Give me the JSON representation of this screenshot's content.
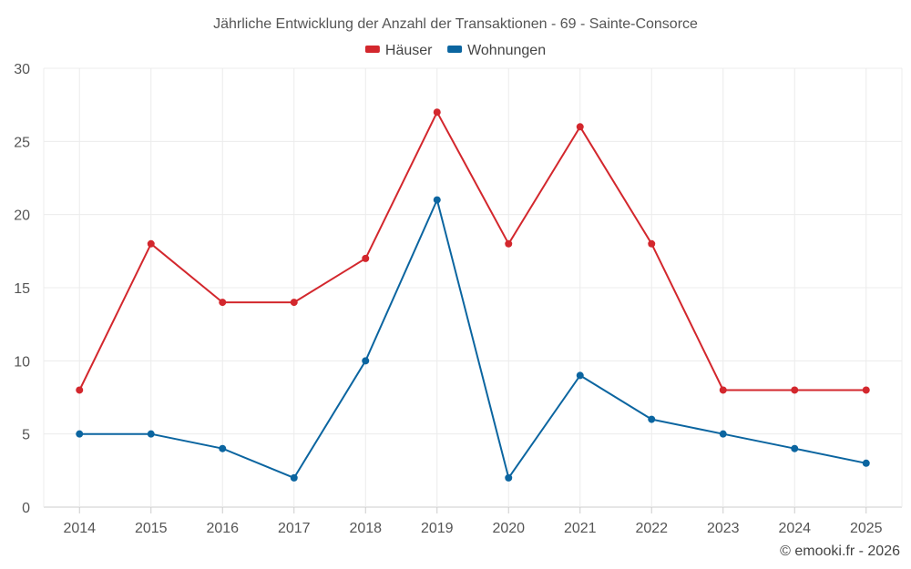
{
  "chart_data": {
    "type": "line",
    "title": "Jährliche Entwicklung der Anzahl der Transaktionen - 69 - Sainte-Consorce",
    "categories": [
      "2014",
      "2015",
      "2016",
      "2017",
      "2018",
      "2019",
      "2020",
      "2021",
      "2022",
      "2023",
      "2024",
      "2025"
    ],
    "series": [
      {
        "name": "Häuser",
        "color": "#d3272d",
        "values": [
          8,
          18,
          14,
          14,
          17,
          27,
          18,
          26,
          18,
          8,
          8,
          8
        ]
      },
      {
        "name": "Wohnungen",
        "color": "#0b65a0",
        "values": [
          5,
          5,
          4,
          2,
          10,
          21,
          2,
          9,
          6,
          5,
          4,
          3
        ]
      }
    ],
    "ylim": [
      0,
      30
    ],
    "yticks": [
      "0",
      "5",
      "10",
      "15",
      "20",
      "25",
      "30"
    ],
    "xlabel": "",
    "ylabel": "",
    "grid": true,
    "legend_position": "top-center"
  },
  "credit": "© emooki.fr - 2026"
}
